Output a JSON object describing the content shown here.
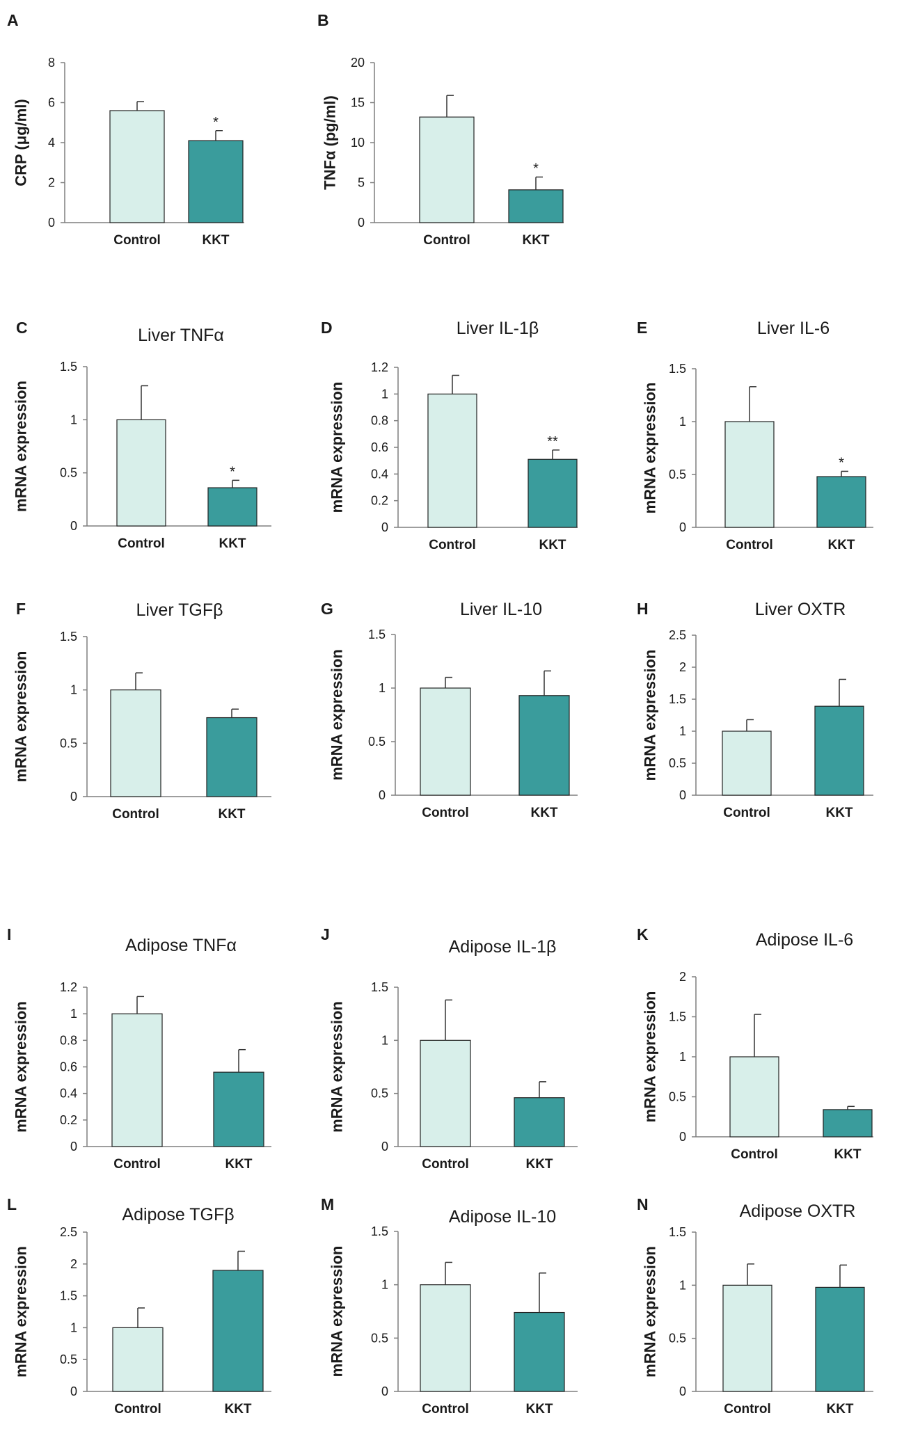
{
  "colors": {
    "control": "#d8efea",
    "kkt": "#3a9c9c",
    "axis": "#7f7f7f",
    "text": "#1a1a1a"
  },
  "chart_data": [
    {
      "id": "A",
      "type": "bar",
      "label": "A",
      "title": "",
      "ylabel": "CRP (μg/ml)",
      "categories": [
        "Control",
        "KKT"
      ],
      "values": [
        5.6,
        4.1
      ],
      "errors": [
        0.45,
        0.5
      ],
      "significance": [
        "",
        "*"
      ],
      "ylim": [
        0,
        8
      ],
      "ticks": [
        0,
        2,
        4,
        6,
        8
      ],
      "tick_labels": [
        "0",
        "2",
        "4",
        "6",
        "8"
      ]
    },
    {
      "id": "B",
      "type": "bar",
      "label": "B",
      "title": "",
      "ylabel": "TNFα (pg/ml)",
      "categories": [
        "Control",
        "KKT"
      ],
      "values": [
        13.2,
        4.1
      ],
      "errors": [
        2.7,
        1.6
      ],
      "significance": [
        "",
        "*"
      ],
      "ylim": [
        0,
        20
      ],
      "ticks": [
        0,
        5,
        10,
        15,
        20
      ],
      "tick_labels": [
        "0",
        "5",
        "10",
        "15",
        "20"
      ]
    },
    {
      "id": "C",
      "type": "bar",
      "label": "C",
      "title": "Liver TNFα",
      "ylabel": "mRNA expression",
      "categories": [
        "Control",
        "KKT"
      ],
      "values": [
        1.0,
        0.36
      ],
      "errors": [
        0.32,
        0.07
      ],
      "significance": [
        "",
        "*"
      ],
      "ylim": [
        0,
        1.5
      ],
      "ticks": [
        0,
        0.5,
        1,
        1.5
      ],
      "tick_labels": [
        "0",
        "0.5",
        "1",
        "1.5"
      ]
    },
    {
      "id": "D",
      "type": "bar",
      "label": "D",
      "title": "Liver IL-1β",
      "ylabel": "mRNA expression",
      "categories": [
        "Control",
        "KKT"
      ],
      "values": [
        1.0,
        0.51
      ],
      "errors": [
        0.14,
        0.07
      ],
      "significance": [
        "",
        "**"
      ],
      "ylim": [
        0,
        1.2
      ],
      "ticks": [
        0,
        0.2,
        0.4,
        0.6,
        0.8,
        1,
        1.2
      ],
      "tick_labels": [
        "0",
        "0.2",
        "0.4",
        "0.6",
        "0.8",
        "1",
        "1.2"
      ]
    },
    {
      "id": "E",
      "type": "bar",
      "label": "E",
      "title": "Liver IL-6",
      "ylabel": "mRNA expression",
      "categories": [
        "Control",
        "KKT"
      ],
      "values": [
        1.0,
        0.48
      ],
      "errors": [
        0.33,
        0.05
      ],
      "significance": [
        "",
        "*"
      ],
      "ylim": [
        0,
        1.5
      ],
      "ticks": [
        0,
        0.5,
        1,
        1.5
      ],
      "tick_labels": [
        "0",
        "0.5",
        "1",
        "1.5"
      ]
    },
    {
      "id": "F",
      "type": "bar",
      "label": "F",
      "title": "Liver TGFβ",
      "ylabel": "mRNA expression",
      "categories": [
        "Control",
        "KKT"
      ],
      "values": [
        1.0,
        0.74
      ],
      "errors": [
        0.16,
        0.08
      ],
      "significance": [
        "",
        ""
      ],
      "ylim": [
        0,
        1.5
      ],
      "ticks": [
        0,
        0.5,
        1,
        1.5
      ],
      "tick_labels": [
        "0",
        "0.5",
        "1",
        "1.5"
      ]
    },
    {
      "id": "G",
      "type": "bar",
      "label": "G",
      "title": "Liver IL-10",
      "ylabel": "mRNA expression",
      "categories": [
        "Control",
        "KKT"
      ],
      "values": [
        1.0,
        0.93
      ],
      "errors": [
        0.1,
        0.23
      ],
      "significance": [
        "",
        ""
      ],
      "ylim": [
        0,
        1.5
      ],
      "ticks": [
        0,
        0.5,
        1,
        1.5
      ],
      "tick_labels": [
        "0",
        "0.5",
        "1",
        "1.5"
      ]
    },
    {
      "id": "H",
      "type": "bar",
      "label": "H",
      "title": "Liver OXTR",
      "ylabel": "mRNA expression",
      "categories": [
        "Control",
        "KKT"
      ],
      "values": [
        1.0,
        1.39
      ],
      "errors": [
        0.18,
        0.42
      ],
      "significance": [
        "",
        ""
      ],
      "ylim": [
        0,
        2.5
      ],
      "ticks": [
        0,
        0.5,
        1,
        1.5,
        2,
        2.5
      ],
      "tick_labels": [
        "0",
        "0.5",
        "1",
        "1.5",
        "2",
        "2.5"
      ]
    },
    {
      "id": "I",
      "type": "bar",
      "label": "I",
      "title": "Adipose TNFα",
      "ylabel": "mRNA expression",
      "categories": [
        "Control",
        "KKT"
      ],
      "values": [
        1.0,
        0.56
      ],
      "errors": [
        0.13,
        0.17
      ],
      "significance": [
        "",
        ""
      ],
      "ylim": [
        0,
        1.2
      ],
      "ticks": [
        0,
        0.2,
        0.4,
        0.6,
        0.8,
        1,
        1.2
      ],
      "tick_labels": [
        "0",
        "0.2",
        "0.4",
        "0.6",
        "0.8",
        "1",
        "1.2"
      ]
    },
    {
      "id": "J",
      "type": "bar",
      "label": "J",
      "title": "Adipose IL-1β",
      "ylabel": "mRNA expression",
      "categories": [
        "Control",
        "KKT"
      ],
      "values": [
        1.0,
        0.46
      ],
      "errors": [
        0.38,
        0.15
      ],
      "significance": [
        "",
        ""
      ],
      "ylim": [
        0,
        1.5
      ],
      "ticks": [
        0,
        0.5,
        1,
        1.5
      ],
      "tick_labels": [
        "0",
        "0.5",
        "1",
        "1.5"
      ]
    },
    {
      "id": "K",
      "type": "bar",
      "label": "K",
      "title": "Adipose IL-6",
      "ylabel": "mRNA expression",
      "categories": [
        "Control",
        "KKT"
      ],
      "values": [
        1.0,
        0.34
      ],
      "errors": [
        0.53,
        0.04
      ],
      "significance": [
        "",
        ""
      ],
      "ylim": [
        0,
        2
      ],
      "ticks": [
        0,
        0.5,
        1,
        1.5,
        2
      ],
      "tick_labels": [
        "0",
        "0.5",
        "1",
        "1.5",
        "2"
      ]
    },
    {
      "id": "L",
      "type": "bar",
      "label": "L",
      "title": "Adipose TGFβ",
      "ylabel": "mRNA expression",
      "categories": [
        "Control",
        "KKT"
      ],
      "values": [
        1.0,
        1.9
      ],
      "errors": [
        0.31,
        0.3
      ],
      "significance": [
        "",
        ""
      ],
      "ylim": [
        0,
        2.5
      ],
      "ticks": [
        0,
        0.5,
        1,
        1.5,
        2,
        2.5
      ],
      "tick_labels": [
        "0",
        "0.5",
        "1",
        "1.5",
        "2",
        "2.5"
      ]
    },
    {
      "id": "M",
      "type": "bar",
      "label": "M",
      "title": "Adipose IL-10",
      "ylabel": "mRNA expression",
      "categories": [
        "Control",
        "KKT"
      ],
      "values": [
        1.0,
        0.74
      ],
      "errors": [
        0.21,
        0.37
      ],
      "significance": [
        "",
        ""
      ],
      "ylim": [
        0,
        1.5
      ],
      "ticks": [
        0,
        0.5,
        1,
        1.5
      ],
      "tick_labels": [
        "0",
        "0.5",
        "1",
        "1.5"
      ]
    },
    {
      "id": "N",
      "type": "bar",
      "label": "N",
      "title": "Adipose OXTR",
      "ylabel": "mRNA expression",
      "categories": [
        "Control",
        "KKT"
      ],
      "values": [
        1.0,
        0.98
      ],
      "errors": [
        0.2,
        0.21
      ],
      "significance": [
        "",
        ""
      ],
      "ylim": [
        0,
        1.5
      ],
      "ticks": [
        0,
        0.5,
        1,
        1.5
      ],
      "tick_labels": [
        "0",
        "0.5",
        "1",
        "1.5"
      ]
    }
  ]
}
